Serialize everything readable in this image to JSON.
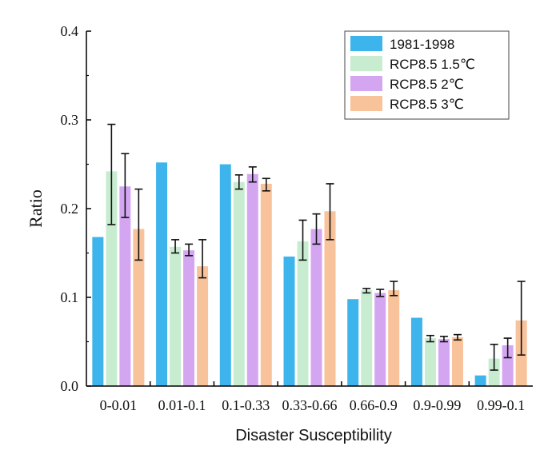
{
  "chart_data": {
    "type": "bar",
    "title": "",
    "xlabel": "Disaster Susceptibility",
    "ylabel": "Ratio",
    "ylim": [
      0,
      0.4
    ],
    "yticks": [
      "0.0",
      "0.1",
      "0.2",
      "0.3",
      "0.4"
    ],
    "yticks_values": [
      0,
      0.1,
      0.2,
      0.3,
      0.4
    ],
    "categories": [
      "0-0.01",
      "0.01-0.1",
      "0.1-0.33",
      "0.33-0.66",
      "0.66-0.9",
      "0.9-0.99",
      "0.99-0.1"
    ],
    "legend_position": "top-right",
    "grid": false,
    "series": [
      {
        "name": "1981-1998",
        "color": "#3db4ec",
        "values": [
          0.168,
          0.252,
          0.25,
          0.146,
          0.098,
          0.077,
          0.012
        ],
        "errors": [
          null,
          null,
          null,
          null,
          null,
          null,
          null
        ]
      },
      {
        "name": "RCP8.5 1.5℃",
        "color": "#c8ecd0",
        "values": [
          0.242,
          0.157,
          0.23,
          0.163,
          0.108,
          0.054,
          0.031
        ],
        "errors": [
          [
            0.182,
            0.295
          ],
          [
            0.15,
            0.165
          ],
          [
            0.222,
            0.238
          ],
          [
            0.142,
            0.187
          ],
          [
            0.105,
            0.11
          ],
          [
            0.05,
            0.057
          ],
          [
            0.018,
            0.047
          ]
        ]
      },
      {
        "name": "RCP8.5 2℃",
        "color": "#d4a6f2",
        "values": [
          0.225,
          0.153,
          0.239,
          0.177,
          0.105,
          0.053,
          0.046
        ],
        "errors": [
          [
            0.19,
            0.262
          ],
          [
            0.147,
            0.16
          ],
          [
            0.23,
            0.247
          ],
          [
            0.16,
            0.194
          ],
          [
            0.101,
            0.109
          ],
          [
            0.05,
            0.056
          ],
          [
            0.032,
            0.054
          ]
        ]
      },
      {
        "name": "RCP8.5 3℃",
        "color": "#f8c29a",
        "values": [
          0.177,
          0.135,
          0.228,
          0.197,
          0.108,
          0.055,
          0.074
        ],
        "errors": [
          [
            0.142,
            0.222
          ],
          [
            0.122,
            0.165
          ],
          [
            0.22,
            0.234
          ],
          [
            0.165,
            0.228
          ],
          [
            0.102,
            0.118
          ],
          [
            0.052,
            0.058
          ],
          [
            0.035,
            0.118
          ]
        ]
      }
    ]
  }
}
